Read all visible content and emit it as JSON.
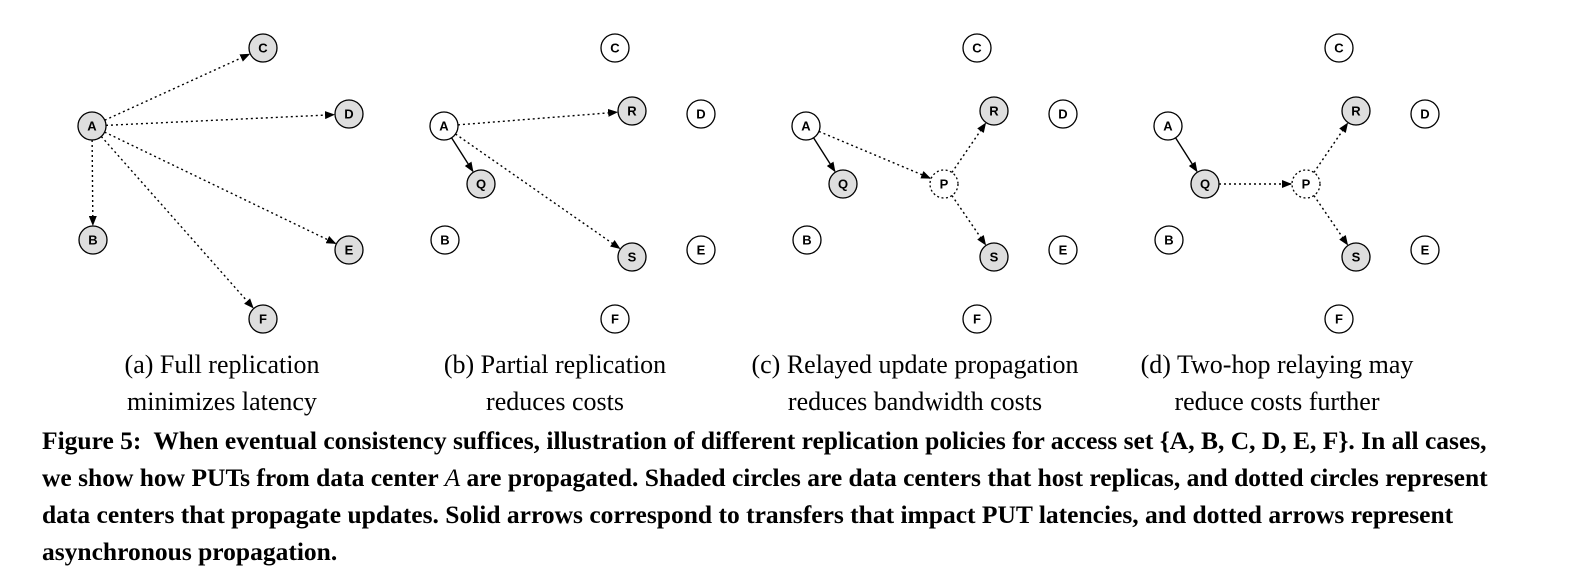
{
  "panels": [
    {
      "id": "a",
      "caption_line1": "(a) Full replication",
      "caption_line2": "minimizes latency",
      "nodes": [
        {
          "id": "A",
          "style": "shaded"
        },
        {
          "id": "B",
          "style": "shaded"
        },
        {
          "id": "C",
          "style": "shaded"
        },
        {
          "id": "D",
          "style": "shaded"
        },
        {
          "id": "E",
          "style": "shaded"
        },
        {
          "id": "F",
          "style": "shaded"
        }
      ],
      "edges": [
        {
          "from": "A",
          "to": "C",
          "style": "dotted"
        },
        {
          "from": "A",
          "to": "D",
          "style": "dotted"
        },
        {
          "from": "A",
          "to": "B",
          "style": "dotted"
        },
        {
          "from": "A",
          "to": "E",
          "style": "dotted"
        },
        {
          "from": "A",
          "to": "F",
          "style": "dotted"
        }
      ]
    },
    {
      "id": "b",
      "caption_line1": "(b) Partial replication",
      "caption_line2": "reduces costs",
      "nodes": [
        {
          "id": "A",
          "style": "plain"
        },
        {
          "id": "B",
          "style": "plain"
        },
        {
          "id": "C",
          "style": "plain"
        },
        {
          "id": "D",
          "style": "plain"
        },
        {
          "id": "E",
          "style": "plain"
        },
        {
          "id": "F",
          "style": "plain"
        },
        {
          "id": "Q",
          "style": "shaded"
        },
        {
          "id": "R",
          "style": "shaded"
        },
        {
          "id": "S",
          "style": "shaded"
        }
      ],
      "edges": [
        {
          "from": "A",
          "to": "Q",
          "style": "solid"
        },
        {
          "from": "A",
          "to": "R",
          "style": "dotted"
        },
        {
          "from": "A",
          "to": "S",
          "style": "dotted"
        }
      ]
    },
    {
      "id": "c",
      "caption_line1": "(c) Relayed update propagation",
      "caption_line2": "reduces bandwidth costs",
      "nodes": [
        {
          "id": "A",
          "style": "plain"
        },
        {
          "id": "B",
          "style": "plain"
        },
        {
          "id": "C",
          "style": "plain"
        },
        {
          "id": "D",
          "style": "plain"
        },
        {
          "id": "E",
          "style": "plain"
        },
        {
          "id": "F",
          "style": "plain"
        },
        {
          "id": "Q",
          "style": "shaded"
        },
        {
          "id": "R",
          "style": "shaded"
        },
        {
          "id": "S",
          "style": "shaded"
        },
        {
          "id": "P",
          "style": "dotted"
        }
      ],
      "edges": [
        {
          "from": "A",
          "to": "Q",
          "style": "solid"
        },
        {
          "from": "A",
          "to": "P",
          "style": "dotted"
        },
        {
          "from": "P",
          "to": "R",
          "style": "dotted"
        },
        {
          "from": "P",
          "to": "S",
          "style": "dotted"
        }
      ]
    },
    {
      "id": "d",
      "caption_line1": "(d) Two-hop relaying may",
      "caption_line2": "reduce costs further",
      "nodes": [
        {
          "id": "A",
          "style": "plain"
        },
        {
          "id": "B",
          "style": "plain"
        },
        {
          "id": "C",
          "style": "plain"
        },
        {
          "id": "D",
          "style": "plain"
        },
        {
          "id": "E",
          "style": "plain"
        },
        {
          "id": "F",
          "style": "plain"
        },
        {
          "id": "Q",
          "style": "shaded"
        },
        {
          "id": "R",
          "style": "shaded"
        },
        {
          "id": "S",
          "style": "shaded"
        },
        {
          "id": "P",
          "style": "dotted"
        }
      ],
      "edges": [
        {
          "from": "A",
          "to": "Q",
          "style": "solid"
        },
        {
          "from": "Q",
          "to": "P",
          "style": "dotted"
        },
        {
          "from": "P",
          "to": "R",
          "style": "dotted"
        },
        {
          "from": "P",
          "to": "S",
          "style": "dotted"
        }
      ]
    }
  ],
  "figure_caption": {
    "label": "Figure 5:",
    "text_1": "When eventual consistency suffices, illustration of different replication policies for access set {A, B, C, D, E, F}. In all cases, we show how PUTs from data center ",
    "text_italic": "A",
    "text_2": " are propagated. Shaded circles are data centers that host replicas, and dotted circles represent data centers that propagate updates. Solid arrows correspond to transfers that impact PUT latencies, and dotted arrows represent asynchronous propagation."
  },
  "colors": {
    "shaded_fill": "#dedede",
    "plain_fill": "#ffffff",
    "stroke": "#000000"
  }
}
